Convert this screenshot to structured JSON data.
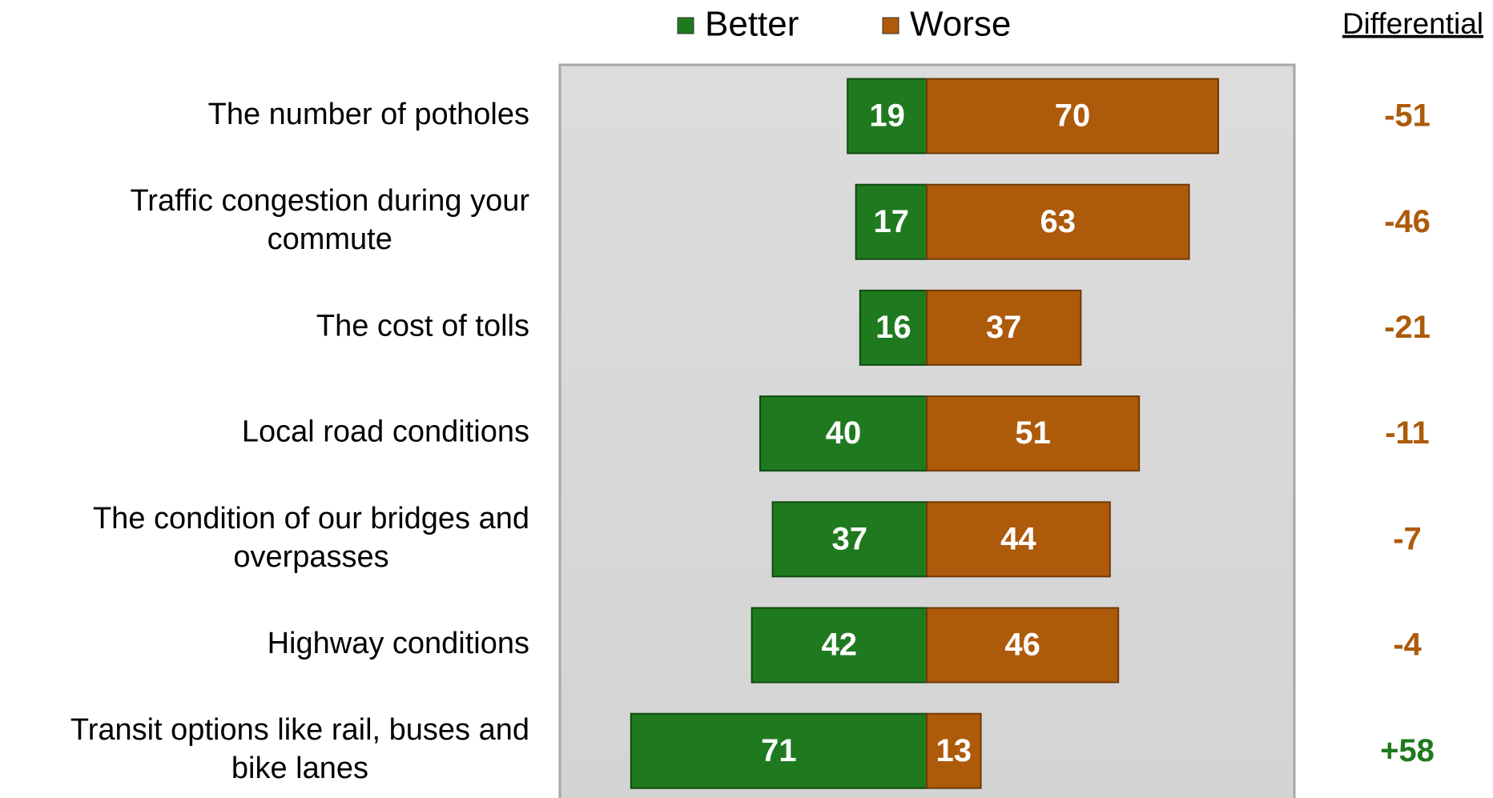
{
  "chart_data": {
    "type": "diverging_bar",
    "categories": [
      "The number of potholes",
      "Traffic congestion during your commute",
      "The cost of tolls",
      "Local road conditions",
      "The condition of our bridges and overpasses",
      "Highway conditions",
      "Transit options like rail, buses and bike lanes"
    ],
    "series": [
      {
        "name": "Better",
        "color": "#1f7a1f",
        "values": [
          19,
          17,
          16,
          40,
          37,
          42,
          71
        ]
      },
      {
        "name": "Worse",
        "color": "#ad5a0a",
        "values": [
          70,
          63,
          37,
          51,
          44,
          46,
          13
        ]
      }
    ],
    "differential": {
      "title": "Differential",
      "values": [
        -51,
        -46,
        -21,
        -11,
        -7,
        -4,
        58
      ],
      "value_labels": [
        "-51",
        "-46",
        "-21",
        "-11",
        "-7",
        "-4",
        "+58"
      ]
    },
    "legend": "top"
  }
}
